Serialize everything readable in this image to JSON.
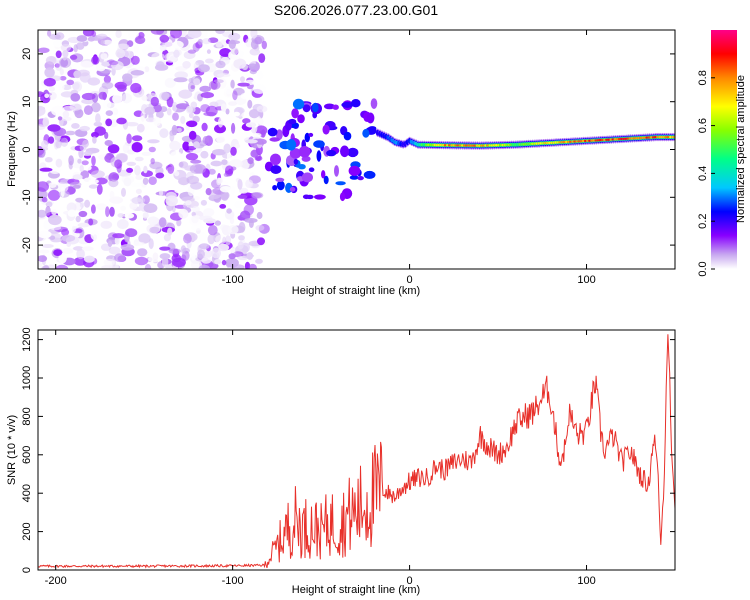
{
  "title": "S206.2026.077.23.00.G01",
  "colors": {
    "snr_line": "#e8302a",
    "frame": "#000000"
  },
  "chart_data": [
    {
      "type": "heatmap",
      "title": "S206.2026.077.23.00.G01",
      "xlabel": "Height of straight line (km)",
      "ylabel": "Frequency (Hz)",
      "xlim": [
        -210,
        150
      ],
      "ylim": [
        -25,
        25
      ],
      "xticks": [
        -200,
        -100,
        0,
        100
      ],
      "yticks": [
        -20,
        -10,
        0,
        10,
        20
      ],
      "colorbar": {
        "label": "Normalized spectral amplitude",
        "range": [
          0,
          1
        ],
        "ticks": [
          0.0,
          0.2,
          0.4,
          0.6,
          0.8
        ],
        "tick_labels": [
          "0.0",
          "0.2",
          "0.4",
          "0.6",
          "0.8"
        ],
        "colormap": [
          "#ffffff",
          "#c8a8f0",
          "#8800ff",
          "#0000ff",
          "#00c8ff",
          "#00ff88",
          "#88ff00",
          "#ffff00",
          "#ff8800",
          "#ff0000",
          "#ff00aa"
        ]
      },
      "noise_region_x": [
        -210,
        -82
      ],
      "ridge": {
        "height_km": [
          -18,
          -12,
          -8,
          -3,
          0,
          5,
          20,
          40,
          60,
          80,
          100,
          120,
          140,
          150
        ],
        "frequency_hz": [
          3.5,
          2.5,
          1.5,
          1.0,
          1.8,
          1.0,
          0.9,
          0.8,
          1.0,
          1.4,
          1.8,
          2.2,
          2.6,
          2.6
        ],
        "amplitude": [
          0.3,
          0.35,
          0.4,
          0.3,
          0.35,
          0.5,
          0.85,
          0.85,
          0.6,
          0.8,
          0.9,
          0.92,
          0.9,
          0.8
        ]
      }
    },
    {
      "type": "line",
      "xlabel": "Height of straight line (km)",
      "ylabel": "SNR (10 * v/v)",
      "xlim": [
        -210,
        150
      ],
      "ylim": [
        0,
        1250
      ],
      "xticks": [
        -200,
        -100,
        0,
        100
      ],
      "yticks": [
        0,
        200,
        400,
        600,
        800,
        1000,
        1200
      ],
      "series": [
        {
          "name": "SNR",
          "x": [
            -210,
            -150,
            -100,
            -82,
            -75,
            -70,
            -65,
            -60,
            -55,
            -50,
            -45,
            -40,
            -35,
            -30,
            -25,
            -20,
            -15,
            -12,
            -8,
            -5,
            0,
            5,
            10,
            15,
            20,
            25,
            30,
            35,
            40,
            45,
            50,
            55,
            60,
            65,
            70,
            75,
            78,
            80,
            85,
            88,
            90,
            95,
            100,
            105,
            108,
            110,
            115,
            120,
            125,
            130,
            135,
            138,
            140,
            142,
            144,
            145,
            146,
            147,
            148,
            150
          ],
          "y": [
            20,
            20,
            22,
            25,
            120,
            200,
            260,
            220,
            230,
            200,
            250,
            230,
            280,
            300,
            350,
            380,
            420,
            400,
            380,
            420,
            460,
            480,
            480,
            540,
            520,
            560,
            580,
            560,
            700,
            640,
            600,
            640,
            760,
            800,
            820,
            900,
            940,
            880,
            560,
            640,
            820,
            700,
            720,
            980,
            720,
            620,
            700,
            560,
            620,
            500,
            440,
            700,
            560,
            130,
            500,
            1000,
            1240,
            1100,
            600,
            320
          ]
        }
      ]
    }
  ]
}
